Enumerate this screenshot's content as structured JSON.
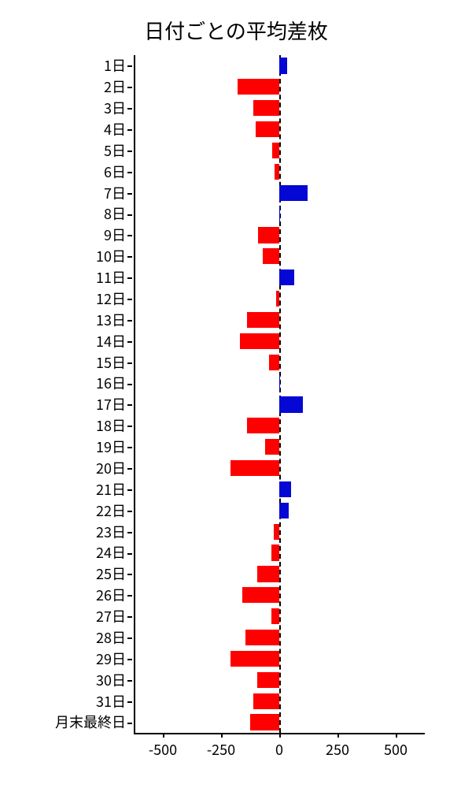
{
  "chart": {
    "type": "horizontal-bar",
    "title": "日付ごとの平均差枚",
    "title_fontsize": 26,
    "background_color": "#ffffff",
    "positive_color": "#0507d4",
    "negative_color": "#ff0000",
    "axis_color": "#000000",
    "zero_line_style": "dashed",
    "x_axis": {
      "min": -625,
      "max": 625,
      "ticks": [
        -500,
        -250,
        0,
        250,
        500
      ],
      "tick_labels": [
        "-500",
        "-250",
        "0",
        "250",
        "500"
      ],
      "label_fontsize": 18
    },
    "y_axis": {
      "label_fontsize": 18
    },
    "bar_height_ratio": 0.75,
    "categories": [
      "1日",
      "2日",
      "3日",
      "4日",
      "5日",
      "6日",
      "7日",
      "8日",
      "9日",
      "10日",
      "11日",
      "12日",
      "13日",
      "14日",
      "15日",
      "16日",
      "17日",
      "18日",
      "19日",
      "20日",
      "21日",
      "22日",
      "23日",
      "24日",
      "25日",
      "26日",
      "27日",
      "28日",
      "29日",
      "30日",
      "31日",
      "月末最終日"
    ],
    "values": [
      35,
      -180,
      -110,
      -100,
      -30,
      -20,
      120,
      5,
      -90,
      -70,
      65,
      -15,
      -140,
      -170,
      -45,
      2,
      100,
      -140,
      -60,
      -210,
      50,
      40,
      -25,
      -35,
      -95,
      -160,
      -35,
      -145,
      -210,
      -95,
      -110,
      -125
    ]
  }
}
